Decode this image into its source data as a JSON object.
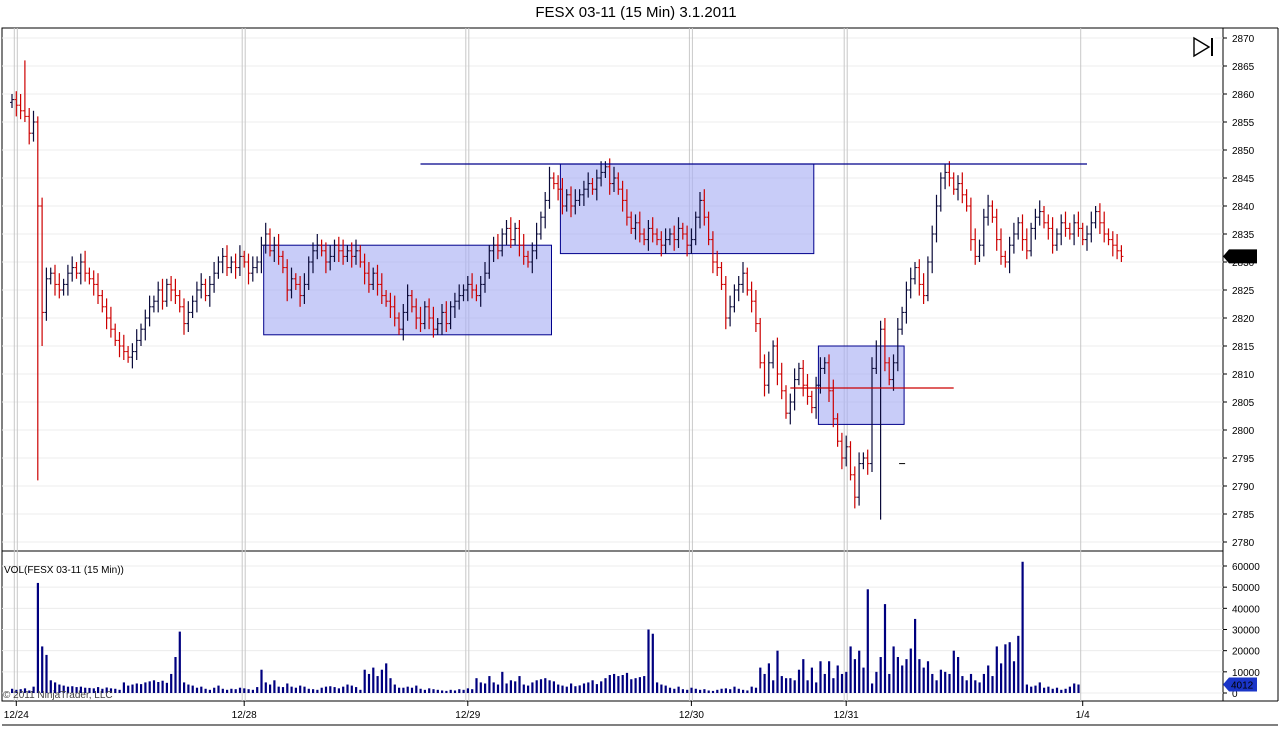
{
  "window": {
    "title": "FESX 03-11 (15 Min)  3.1.2011"
  },
  "colors": {
    "up_bar": "#0b0b3a",
    "down_bar": "#cc0000",
    "volume_bar": "#00007f",
    "zone_fill": "#aab0f5",
    "zone_edge": "#00008b",
    "resistance_line": "#00008b",
    "support_line": "#cc0000",
    "price_marker": "#000000",
    "volume_marker": "#1a35c8",
    "grid": "#c8c8c8"
  },
  "icons": {
    "play_end": "skip-to-end-icon"
  },
  "chart_data": [
    {
      "type": "ohlc",
      "panel": "price",
      "title": "FESX 03-11 (15 Min)  3.1.2011",
      "ylim": [
        2778,
        2871
      ],
      "y_ticks": [
        "2870",
        "2865",
        "2860",
        "2855",
        "2850",
        "2845",
        "2840",
        "2835",
        "2830",
        "2825",
        "2820",
        "2815",
        "2810",
        "2805",
        "2800",
        "2795",
        "2790",
        "2785",
        "2780"
      ],
      "x_ticks": [
        "12/24",
        "12/28",
        "12/29",
        "12/30",
        "12/31",
        "1/4"
      ],
      "last_price_label": "2831",
      "grid": true,
      "closes": [
        2859,
        2858,
        2857,
        2856,
        2853,
        2855,
        2840,
        2821,
        2827,
        2828,
        2826,
        2825,
        2826,
        2828,
        2829,
        2828,
        2830,
        2828,
        2827,
        2826,
        2824,
        2822,
        2820,
        2818,
        2816,
        2815,
        2814,
        2813,
        2814,
        2816,
        2818,
        2820,
        2822,
        2823,
        2825,
        2823,
        2826,
        2825,
        2824,
        2822,
        2819,
        2821,
        2823,
        2825,
        2826,
        2824,
        2826,
        2828,
        2830,
        2831,
        2829,
        2830,
        2829,
        2831,
        2830,
        2828,
        2829,
        2830,
        2833,
        2835,
        2832,
        2833,
        2831,
        2829,
        2825,
        2827,
        2826,
        2824,
        2826,
        2830,
        2832,
        2833,
        2832,
        2830,
        2831,
        2833,
        2832,
        2831,
        2832,
        2831,
        2832,
        2830,
        2828,
        2826,
        2828,
        2826,
        2824,
        2823,
        2822,
        2820,
        2818,
        2821,
        2824,
        2822,
        2820,
        2819,
        2822,
        2820,
        2818,
        2819,
        2821,
        2819,
        2822,
        2823,
        2824,
        2825,
        2826,
        2825,
        2824,
        2826,
        2828,
        2832,
        2833,
        2832,
        2835,
        2836,
        2834,
        2836,
        2833,
        2831,
        2830,
        2832,
        2835,
        2838,
        2841,
        2845,
        2844,
        2843,
        2840,
        2842,
        2840,
        2841,
        2842,
        2843,
        2844,
        2843,
        2845,
        2846,
        2847,
        2844,
        2845,
        2843,
        2841,
        2838,
        2836,
        2837,
        2835,
        2834,
        2836,
        2835,
        2834,
        2833,
        2834,
        2835,
        2834,
        2836,
        2835,
        2833,
        2834,
        2838,
        2841,
        2838,
        2834,
        2830,
        2829,
        2826,
        2820,
        2822,
        2825,
        2826,
        2828,
        2825,
        2823,
        2819,
        2812,
        2808,
        2812,
        2815,
        2810,
        2807,
        2803,
        2805,
        2809,
        2811,
        2808,
        2806,
        2804,
        2808,
        2811,
        2812,
        2807,
        2802,
        2798,
        2795,
        2797,
        2792,
        2788,
        2794,
        2795,
        2794,
        2811,
        2815,
        2818,
        2812,
        2809,
        2812,
        2818,
        2821,
        2825,
        2827,
        2829,
        2826,
        2824,
        2830,
        2835,
        2840,
        2845,
        2846,
        2845,
        2843,
        2844,
        2842,
        2840,
        2834,
        2831,
        2833,
        2838,
        2840,
        2838,
        2834,
        2831,
        2830,
        2833,
        2835,
        2837,
        2834,
        2832,
        2836,
        2838,
        2839,
        2837,
        2836,
        2833,
        2835,
        2837,
        2836,
        2835,
        2837,
        2836,
        2834,
        2835,
        2837,
        2839,
        2837,
        2835,
        2834,
        2833,
        2832,
        2831
      ],
      "zones": [
        {
          "from_bar": 59,
          "to_bar": 125,
          "low": 2817,
          "high": 2833
        },
        {
          "from_bar": 128,
          "to_bar": 186,
          "low": 2831.5,
          "high": 2847.5
        },
        {
          "from_bar": 188,
          "to_bar": 207,
          "low": 2801,
          "high": 2815
        }
      ],
      "lines": [
        {
          "from_bar": 95,
          "to_bar": 250,
          "price": 2847.5,
          "kind": "resistance"
        },
        {
          "from_bar": 181,
          "to_bar": 219,
          "price": 2807.5,
          "kind": "support"
        }
      ],
      "marker_bar": 207,
      "marker_price": 2794
    },
    {
      "type": "bar",
      "panel": "volume",
      "label": "VOL(FESX 03-11 (15 Min))",
      "ylim": [
        0,
        67000
      ],
      "y_ticks": [
        "60000",
        "50000",
        "40000",
        "30000",
        "20000",
        "10000",
        "0"
      ],
      "last_volume_label": "4012",
      "values": [
        2000,
        1500,
        1800,
        2200,
        1200,
        3000,
        52000,
        22000,
        18000,
        6000,
        5000,
        4000,
        3500,
        3000,
        3200,
        2800,
        3000,
        2500,
        2400,
        2200,
        2800,
        2000,
        2600,
        2200,
        2000,
        1500,
        5000,
        3500,
        4000,
        4500,
        4200,
        5000,
        5500,
        6000,
        5200,
        5800,
        4800,
        9000,
        17000,
        29000,
        5000,
        4000,
        3500,
        2500,
        3000,
        2000,
        1500,
        2500,
        3500,
        2000,
        1500,
        2000,
        1800,
        2500,
        2200,
        1800,
        1500,
        2800,
        11000,
        5000,
        4000,
        6000,
        3000,
        2800,
        4500,
        3000,
        2500,
        3500,
        3000,
        2000,
        1800,
        1500,
        2500,
        3000,
        3200,
        2800,
        2200,
        3000,
        4000,
        3500,
        2800,
        1500,
        11000,
        9000,
        12000,
        8000,
        11000,
        14000,
        7000,
        4000,
        2500,
        2500,
        3000,
        2500,
        3500,
        2000,
        1500,
        2200,
        1800,
        1500,
        1200,
        1000,
        1500,
        1200,
        1800,
        1500,
        2200,
        1800,
        7000,
        5000,
        4500,
        8000,
        5000,
        4000,
        10000,
        4500,
        6000,
        5500,
        8000,
        4000,
        3500,
        5000,
        6000,
        6500,
        7000,
        6000,
        5500,
        4000,
        3500,
        3000,
        4500,
        3200,
        3600,
        4500,
        5000,
        6000,
        4200,
        5500,
        7000,
        8500,
        9000,
        8000,
        8500,
        9500,
        6500,
        7000,
        7500,
        8000,
        30000,
        28000,
        5000,
        4000,
        3500,
        2500,
        2000,
        3000,
        1800,
        1500,
        2500,
        2000,
        1500,
        1800,
        1200,
        1000,
        1500,
        2000,
        2200,
        1800,
        3000,
        2000,
        1500,
        1200,
        3000,
        2500,
        12000,
        9000,
        14000,
        6000,
        20000,
        8000,
        7000,
        7000,
        6000,
        11000,
        16000,
        6000,
        12000,
        5000,
        15000,
        9000,
        15000,
        7000,
        13000,
        9000,
        10000,
        22000,
        16000,
        20000,
        12000,
        49000,
        4500,
        10000,
        17000,
        42000,
        9000,
        22000,
        17000,
        13000,
        16000,
        21000,
        35000,
        16000,
        12000,
        15000,
        9000,
        6000,
        11000,
        10000,
        9000,
        20000,
        17000,
        8000,
        6000,
        9000,
        6000,
        5000,
        9000,
        13000,
        8000,
        22000,
        14000,
        23000,
        24000,
        15000,
        27000,
        62000,
        4000,
        3000,
        3500,
        5000,
        2500,
        3000,
        2000,
        2500,
        1500,
        2000,
        3000,
        4500,
        4012
      ]
    }
  ],
  "watermark": "© 2011 NinjaTrader, LLC"
}
